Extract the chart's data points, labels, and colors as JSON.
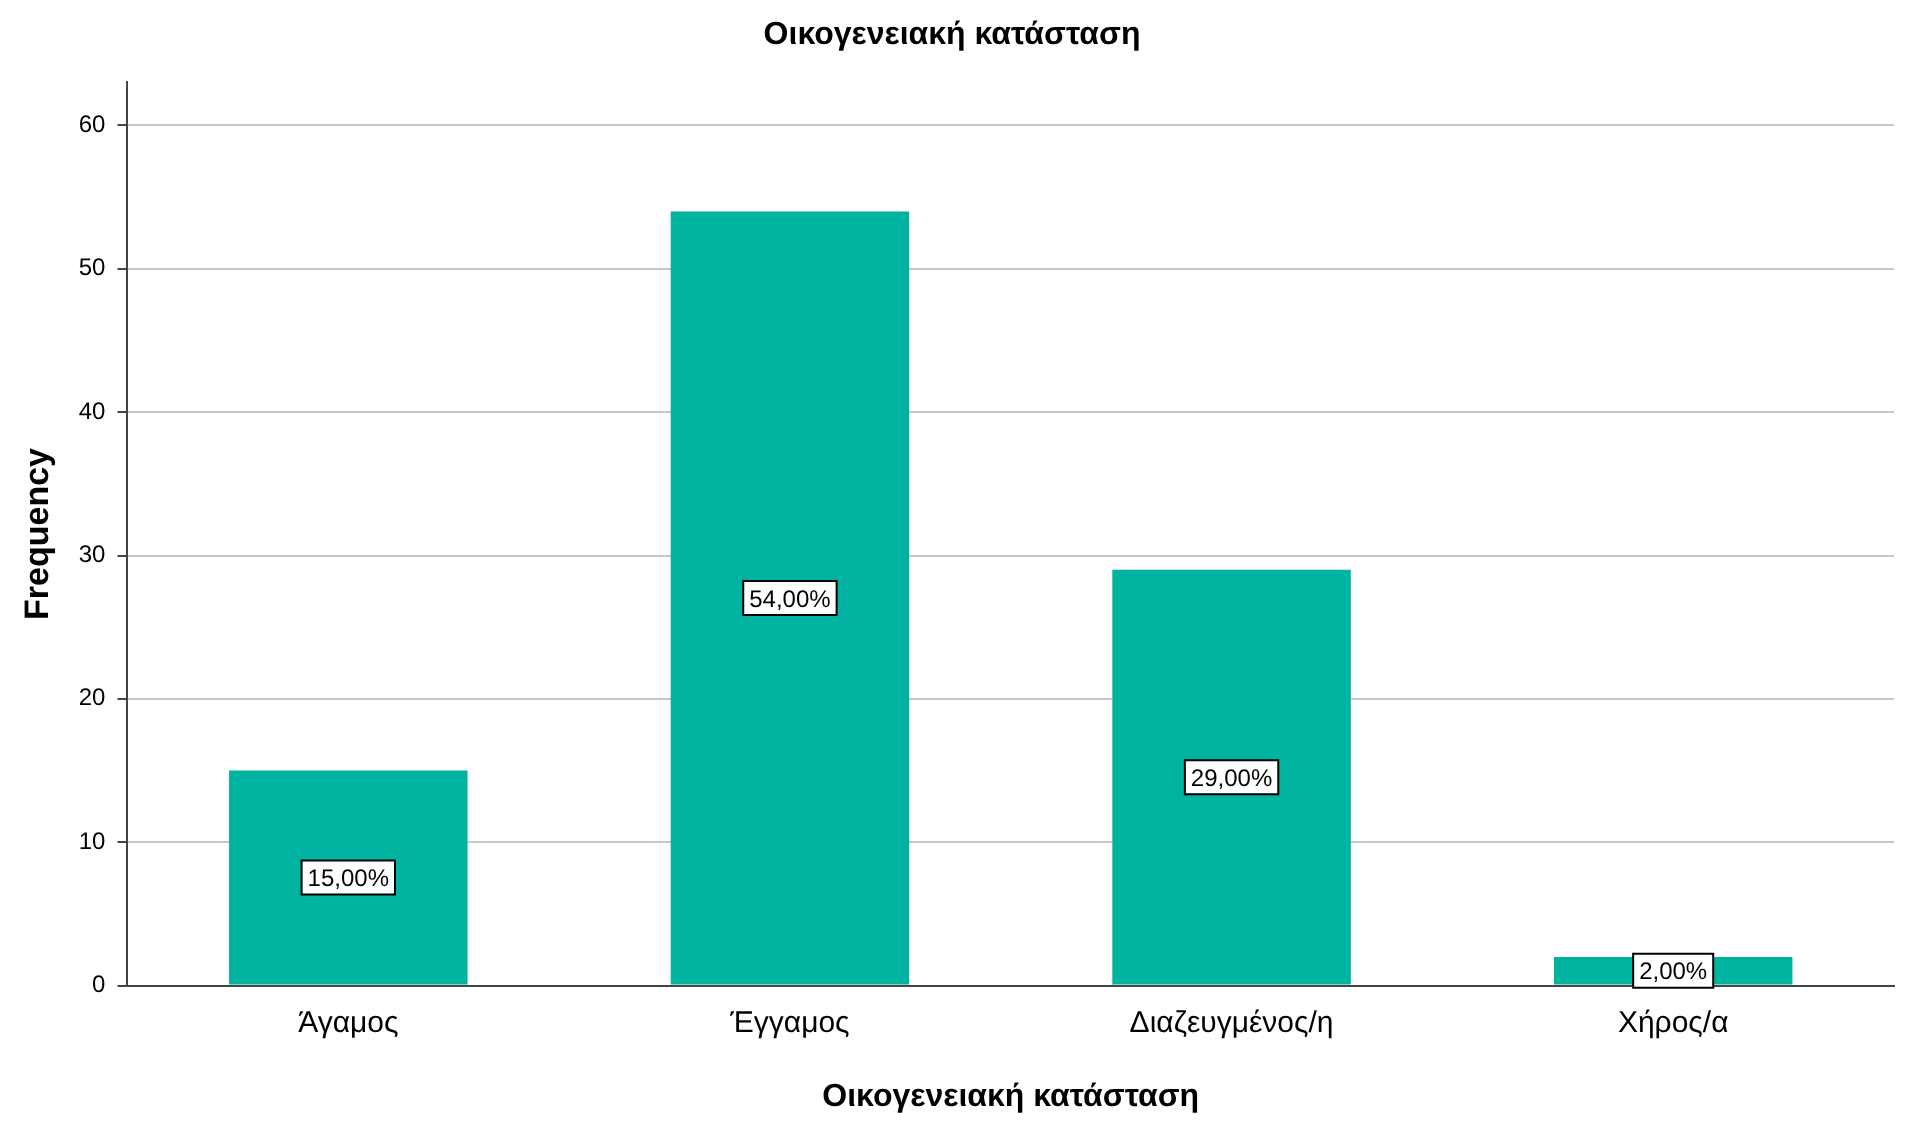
{
  "chart_data": {
    "type": "bar",
    "title": "Οικογενειακή κατάσταση",
    "xlabel": "Οικογενειακή κατάσταση",
    "ylabel": "Frequency",
    "categories": [
      "Άγαμος",
      "Έγγαμος",
      "Διαζευγμένος/η",
      "Χήρος/α"
    ],
    "values": [
      15,
      54,
      29,
      2
    ],
    "value_labels": [
      "15,00%",
      "54,00%",
      "29,00%",
      "2,00%"
    ],
    "color": "#00b2a0",
    "ylim": [
      0,
      63
    ],
    "yticks": [
      0,
      10,
      20,
      30,
      40,
      50,
      60
    ],
    "grid": "y"
  }
}
